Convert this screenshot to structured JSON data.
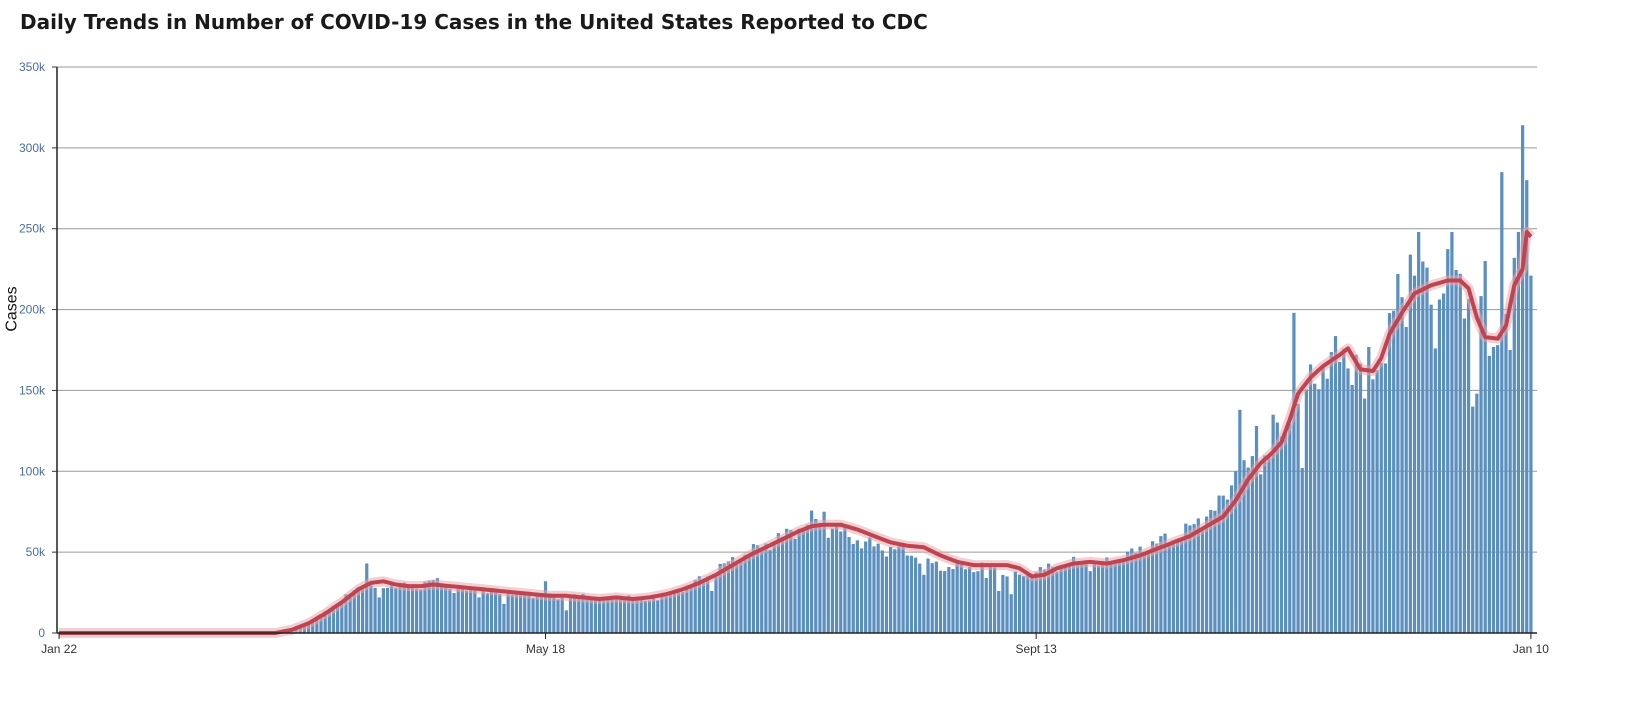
{
  "title": "Daily Trends in Number of COVID-19 Cases in the United States Reported to CDC",
  "chart_data": {
    "type": "bar",
    "ylabel": "Cases",
    "xlabel": "",
    "ylim": [
      0,
      350000
    ],
    "y_ticks": [
      "0",
      "50k",
      "100k",
      "150k",
      "200k",
      "250k",
      "300k",
      "350k"
    ],
    "x_tick_labels": [
      {
        "label": "Jan 22",
        "day": 0
      },
      {
        "label": "May 18",
        "day": 117
      },
      {
        "label": "Sept 13",
        "day": 235
      },
      {
        "label": "Jan 10",
        "day": 354
      }
    ],
    "grid": true,
    "bar_color": "#5b8fbd",
    "line_color": "#c0444f",
    "keypoints": [
      [
        0,
        0
      ],
      [
        53,
        0
      ],
      [
        57,
        2000
      ],
      [
        60,
        6000
      ],
      [
        63,
        11000
      ],
      [
        66,
        17000
      ],
      [
        69,
        22000
      ],
      [
        72,
        28000
      ],
      [
        74,
        32000
      ],
      [
        77,
        26000
      ],
      [
        80,
        31000
      ],
      [
        83,
        29000
      ],
      [
        86,
        28000
      ],
      [
        89,
        33000
      ],
      [
        92,
        30000
      ],
      [
        95,
        27000
      ],
      [
        98,
        26000
      ],
      [
        101,
        29000
      ],
      [
        104,
        24000
      ],
      [
        108,
        26000
      ],
      [
        112,
        23000
      ],
      [
        116,
        24000
      ],
      [
        120,
        21000
      ],
      [
        124,
        23000
      ],
      [
        128,
        22000
      ],
      [
        132,
        20000
      ],
      [
        136,
        24000
      ],
      [
        140,
        20000
      ],
      [
        144,
        22000
      ],
      [
        148,
        25000
      ],
      [
        152,
        30000
      ],
      [
        156,
        35000
      ],
      [
        160,
        42000
      ],
      [
        164,
        47000
      ],
      [
        168,
        52000
      ],
      [
        172,
        57000
      ],
      [
        176,
        62000
      ],
      [
        180,
        68000
      ],
      [
        182,
        70000
      ],
      [
        184,
        66000
      ],
      [
        187,
        64000
      ],
      [
        190,
        60000
      ],
      [
        193,
        56000
      ],
      [
        196,
        54000
      ],
      [
        199,
        52000
      ],
      [
        202,
        52000
      ],
      [
        205,
        49000
      ],
      [
        208,
        45000
      ],
      [
        211,
        42000
      ],
      [
        214,
        40000
      ],
      [
        217,
        42000
      ],
      [
        220,
        40000
      ],
      [
        223,
        41000
      ],
      [
        226,
        38000
      ],
      [
        229,
        34000
      ],
      [
        232,
        36000
      ],
      [
        235,
        38000
      ],
      [
        238,
        40000
      ],
      [
        241,
        42000
      ],
      [
        244,
        43000
      ],
      [
        247,
        43000
      ],
      [
        250,
        41000
      ],
      [
        253,
        44000
      ],
      [
        256,
        47000
      ],
      [
        259,
        50000
      ],
      [
        262,
        54000
      ],
      [
        265,
        57000
      ],
      [
        268,
        58000
      ],
      [
        271,
        63000
      ],
      [
        274,
        68000
      ],
      [
        277,
        75000
      ],
      [
        280,
        82000
      ],
      [
        283,
        95000
      ],
      [
        286,
        102000
      ],
      [
        289,
        108000
      ],
      [
        292,
        115000
      ],
      [
        295,
        125000
      ],
      [
        298,
        140000
      ],
      [
        300,
        150000
      ],
      [
        303,
        162000
      ],
      [
        306,
        168000
      ],
      [
        309,
        172000
      ],
      [
        312,
        166000
      ],
      [
        315,
        164000
      ],
      [
        318,
        170000
      ],
      [
        320,
        185000
      ],
      [
        323,
        200000
      ],
      [
        326,
        214000
      ],
      [
        329,
        215000
      ],
      [
        332,
        218000
      ],
      [
        335,
        220000
      ],
      [
        338,
        215000
      ],
      [
        340,
        205000
      ],
      [
        342,
        190000
      ],
      [
        344,
        178000
      ],
      [
        346,
        175000
      ],
      [
        348,
        185000
      ],
      [
        350,
        210000
      ],
      [
        352,
        230000
      ],
      [
        353,
        260000
      ],
      [
        354,
        225000
      ]
    ],
    "spikes": [
      [
        74,
        43000
      ],
      [
        77,
        22000
      ],
      [
        101,
        22000
      ],
      [
        107,
        18000
      ],
      [
        117,
        32000
      ],
      [
        122,
        14000
      ],
      [
        155,
        33000
      ],
      [
        157,
        26000
      ],
      [
        184,
        75000
      ],
      [
        208,
        36000
      ],
      [
        223,
        34000
      ],
      [
        226,
        26000
      ],
      [
        229,
        24000
      ],
      [
        276,
        72000
      ],
      [
        279,
        85000
      ],
      [
        283,
        100000
      ],
      [
        284,
        138000
      ],
      [
        288,
        128000
      ],
      [
        292,
        135000
      ],
      [
        297,
        198000
      ],
      [
        299,
        102000
      ],
      [
        314,
        145000
      ],
      [
        322,
        222000
      ],
      [
        325,
        234000
      ],
      [
        327,
        248000
      ],
      [
        331,
        176000
      ],
      [
        335,
        248000
      ],
      [
        340,
        140000
      ],
      [
        341,
        148000
      ],
      [
        343,
        230000
      ],
      [
        346,
        178000
      ],
      [
        347,
        285000
      ],
      [
        349,
        175000
      ],
      [
        350,
        232000
      ],
      [
        351,
        248000
      ],
      [
        352,
        314000
      ],
      [
        353,
        280000
      ],
      [
        354,
        221000
      ]
    ],
    "smooth_keypoints": [
      [
        0,
        0
      ],
      [
        52,
        0
      ],
      [
        56,
        2000
      ],
      [
        60,
        6000
      ],
      [
        64,
        12000
      ],
      [
        68,
        19000
      ],
      [
        72,
        27000
      ],
      [
        75,
        31000
      ],
      [
        78,
        32000
      ],
      [
        81,
        30000
      ],
      [
        84,
        29000
      ],
      [
        87,
        29000
      ],
      [
        90,
        30000
      ],
      [
        94,
        29000
      ],
      [
        98,
        28000
      ],
      [
        102,
        27000
      ],
      [
        106,
        26000
      ],
      [
        110,
        25000
      ],
      [
        114,
        24000
      ],
      [
        118,
        23000
      ],
      [
        122,
        23000
      ],
      [
        126,
        22000
      ],
      [
        130,
        21000
      ],
      [
        134,
        22000
      ],
      [
        138,
        21000
      ],
      [
        142,
        22000
      ],
      [
        146,
        24000
      ],
      [
        150,
        27000
      ],
      [
        154,
        31000
      ],
      [
        158,
        36000
      ],
      [
        162,
        42000
      ],
      [
        166,
        48000
      ],
      [
        170,
        53000
      ],
      [
        174,
        58000
      ],
      [
        178,
        63000
      ],
      [
        181,
        66000
      ],
      [
        184,
        67000
      ],
      [
        188,
        67000
      ],
      [
        192,
        64000
      ],
      [
        196,
        60000
      ],
      [
        200,
        56000
      ],
      [
        204,
        54000
      ],
      [
        208,
        53000
      ],
      [
        212,
        48000
      ],
      [
        216,
        44000
      ],
      [
        220,
        42000
      ],
      [
        224,
        42000
      ],
      [
        228,
        42000
      ],
      [
        231,
        40000
      ],
      [
        234,
        35000
      ],
      [
        237,
        36000
      ],
      [
        240,
        40000
      ],
      [
        244,
        43000
      ],
      [
        248,
        44000
      ],
      [
        252,
        43000
      ],
      [
        256,
        45000
      ],
      [
        260,
        48000
      ],
      [
        264,
        52000
      ],
      [
        268,
        56000
      ],
      [
        272,
        60000
      ],
      [
        276,
        66000
      ],
      [
        280,
        72000
      ],
      [
        283,
        82000
      ],
      [
        286,
        95000
      ],
      [
        289,
        105000
      ],
      [
        292,
        112000
      ],
      [
        294,
        118000
      ],
      [
        296,
        132000
      ],
      [
        298,
        148000
      ],
      [
        301,
        158000
      ],
      [
        304,
        165000
      ],
      [
        308,
        172000
      ],
      [
        310,
        176000
      ],
      [
        313,
        163000
      ],
      [
        316,
        162000
      ],
      [
        318,
        170000
      ],
      [
        320,
        185000
      ],
      [
        323,
        198000
      ],
      [
        326,
        210000
      ],
      [
        330,
        215000
      ],
      [
        334,
        218000
      ],
      [
        337,
        218000
      ],
      [
        339,
        213000
      ],
      [
        341,
        195000
      ],
      [
        343,
        183000
      ],
      [
        346,
        182000
      ],
      [
        348,
        190000
      ],
      [
        350,
        215000
      ],
      [
        352,
        225000
      ],
      [
        353,
        248000
      ],
      [
        354,
        245000
      ]
    ]
  }
}
